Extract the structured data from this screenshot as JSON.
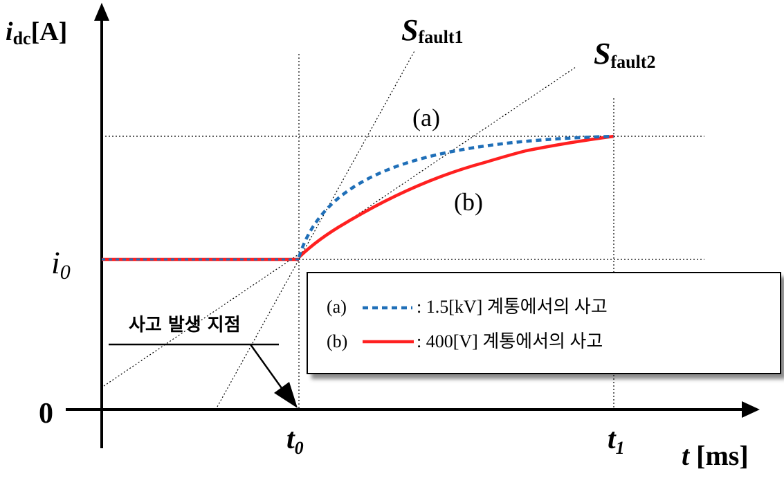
{
  "axes": {
    "y_label_italic": "i",
    "y_label_sub": "dc",
    "y_label_unit": "[A]",
    "x_label_italic": "t",
    "x_label_unit": " [ms]",
    "zero_label": "0",
    "i0_italic": "i",
    "i0_sub": "0",
    "t0_italic": "t",
    "t0_sub": "0",
    "t1_italic": "t",
    "t1_sub": "1"
  },
  "slopes": {
    "fault1_S": "S",
    "fault1_sub": "fault1",
    "fault2_S": "S",
    "fault2_sub": "fault2"
  },
  "curve_labels": {
    "a": "(a)",
    "b": "(b)"
  },
  "annotation": {
    "fault_point": "사고 발생 지점"
  },
  "legend": {
    "items": [
      {
        "key": "(a)",
        "text": ": 1.5[kV] 계통에서의 사고",
        "color": "#1f6fb8",
        "style": "dashed"
      },
      {
        "key": "(b)",
        "text": ": 400[V] 계통에서의 사고",
        "color": "#ff2020",
        "style": "solid"
      }
    ]
  },
  "colors": {
    "curve_a": "#1f6fb8",
    "curve_b": "#ff2020",
    "axis": "#000000"
  }
}
